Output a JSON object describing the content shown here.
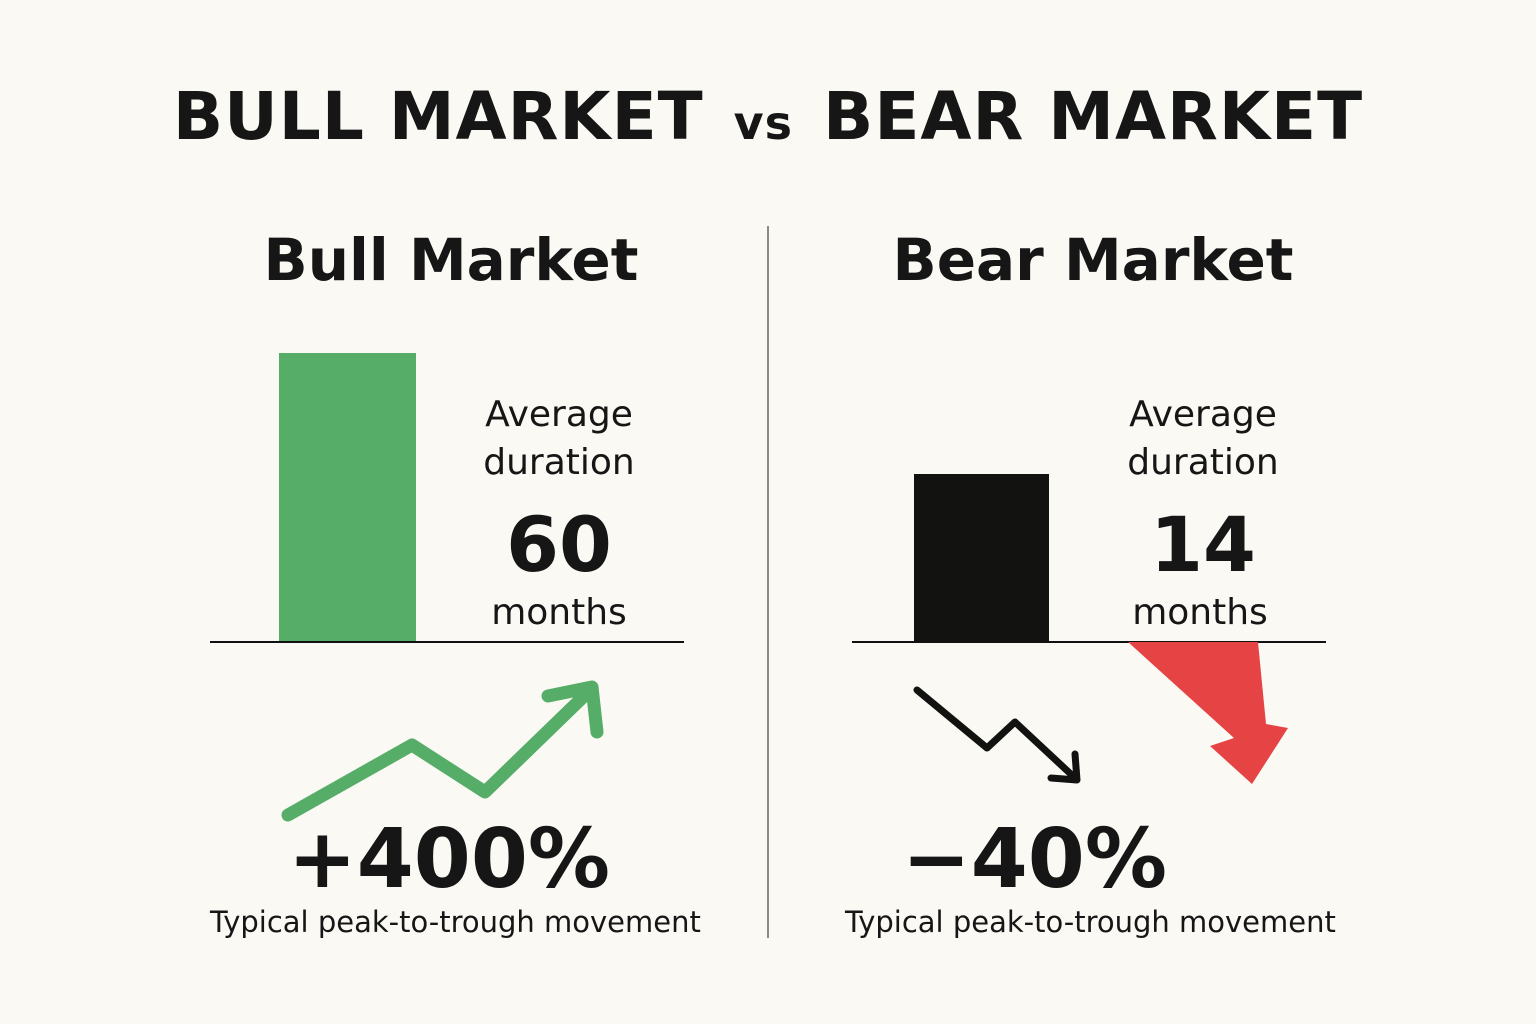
{
  "title": {
    "left": "BULL MARKET",
    "vs": "vs",
    "right": "BEAR MARKET"
  },
  "bull": {
    "heading": "Bull Market",
    "duration_label": "Average duration",
    "duration_value": "60",
    "duration_unit": "months",
    "movement": "+400%",
    "caption": "Typical peak-to-trough movement",
    "color": "#55ad68",
    "trend_icon": "trend-up-arrow-icon"
  },
  "bear": {
    "heading": "Bear Market",
    "duration_label": "Average duration",
    "duration_value": "14",
    "duration_unit": "months",
    "movement": "−40%",
    "caption": "Typical peak-to-trough movement",
    "color": "#121310",
    "trend_icon": "trend-down-arrow-icon",
    "down_arrow_color": "#e64444",
    "down_arrow_icon": "big-down-arrow-icon"
  }
}
